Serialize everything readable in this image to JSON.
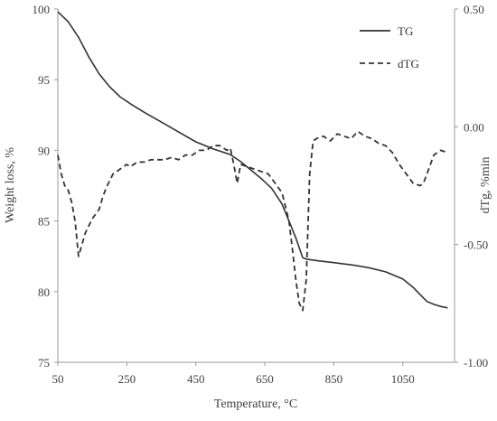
{
  "chart_data": {
    "type": "line",
    "title": "",
    "xlabel": "Temperature, °C",
    "ylabel_left": "Weight loss, %",
    "ylabel_right": "dTg, %min",
    "xlim": [
      50,
      1200
    ],
    "ylim_left": [
      75,
      100
    ],
    "ylim_right": [
      -1.0,
      0.5
    ],
    "x_ticks": [
      "50",
      "250",
      "450",
      "650",
      "850",
      "1050"
    ],
    "x_tick_values": [
      50,
      250,
      450,
      650,
      850,
      1050
    ],
    "y_left_ticks": [
      "75",
      "80",
      "85",
      "90",
      "95",
      "100"
    ],
    "y_left_tick_values": [
      75,
      80,
      85,
      90,
      95,
      100
    ],
    "y_right_ticks": [
      "-1.00",
      "-0.50",
      "0.00",
      "0.50"
    ],
    "y_right_tick_values": [
      -1.0,
      -0.5,
      0.0,
      0.5
    ],
    "grid": false,
    "legend_position": "top-right",
    "series": [
      {
        "name": "TG",
        "axis": "left",
        "style": "solid",
        "color": "#333333",
        "x": [
          50,
          80,
          110,
          140,
          170,
          200,
          230,
          260,
          300,
          350,
          400,
          450,
          500,
          550,
          580,
          610,
          640,
          670,
          700,
          720,
          740,
          760,
          770,
          800,
          850,
          900,
          950,
          1000,
          1050,
          1080,
          1100,
          1120,
          1140,
          1160,
          1180
        ],
        "y": [
          99.8,
          99.1,
          98.0,
          96.6,
          95.4,
          94.5,
          93.8,
          93.3,
          92.7,
          92.0,
          91.3,
          90.6,
          90.1,
          89.7,
          89.2,
          88.6,
          88.0,
          87.3,
          86.2,
          85.0,
          83.8,
          82.4,
          82.3,
          82.2,
          82.05,
          81.9,
          81.7,
          81.4,
          80.9,
          80.3,
          79.8,
          79.3,
          79.1,
          78.95,
          78.85
        ]
      },
      {
        "name": "dTG",
        "axis": "right",
        "style": "dashed",
        "color": "#333333",
        "x": [
          50,
          60,
          70,
          80,
          90,
          100,
          110,
          120,
          130,
          140,
          150,
          160,
          170,
          180,
          190,
          200,
          210,
          220,
          230,
          240,
          250,
          260,
          270,
          280,
          290,
          300,
          320,
          340,
          360,
          380,
          400,
          420,
          440,
          460,
          480,
          500,
          520,
          540,
          550,
          560,
          570,
          580,
          600,
          620,
          640,
          660,
          680,
          700,
          720,
          730,
          740,
          750,
          760,
          770,
          780,
          790,
          800,
          820,
          840,
          860,
          880,
          900,
          920,
          940,
          960,
          980,
          1000,
          1020,
          1040,
          1060,
          1080,
          1100,
          1110,
          1120,
          1140,
          1160,
          1180
        ],
        "y": [
          -0.12,
          -0.2,
          -0.25,
          -0.27,
          -0.32,
          -0.4,
          -0.55,
          -0.5,
          -0.45,
          -0.42,
          -0.39,
          -0.37,
          -0.35,
          -0.3,
          -0.26,
          -0.23,
          -0.2,
          -0.19,
          -0.18,
          -0.17,
          -0.16,
          -0.17,
          -0.16,
          -0.15,
          -0.15,
          -0.15,
          -0.14,
          -0.14,
          -0.14,
          -0.13,
          -0.14,
          -0.12,
          -0.12,
          -0.1,
          -0.1,
          -0.08,
          -0.08,
          -0.1,
          -0.09,
          -0.16,
          -0.24,
          -0.16,
          -0.17,
          -0.18,
          -0.19,
          -0.2,
          -0.24,
          -0.28,
          -0.4,
          -0.52,
          -0.65,
          -0.75,
          -0.78,
          -0.65,
          -0.2,
          -0.06,
          -0.05,
          -0.04,
          -0.06,
          -0.03,
          -0.04,
          -0.05,
          -0.02,
          -0.04,
          -0.05,
          -0.07,
          -0.08,
          -0.11,
          -0.16,
          -0.2,
          -0.24,
          -0.25,
          -0.24,
          -0.2,
          -0.12,
          -0.1,
          -0.11
        ]
      }
    ]
  }
}
